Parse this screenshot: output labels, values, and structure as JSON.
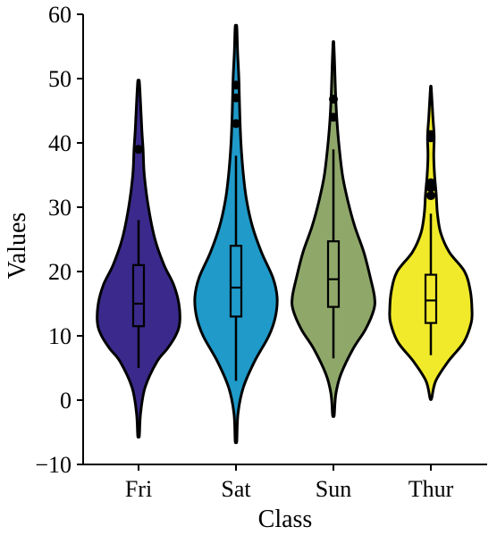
{
  "chart_data": {
    "type": "violin",
    "xlabel": "Class",
    "ylabel": "Values",
    "ylim": [
      -10,
      60
    ],
    "yticks": [
      -10,
      0,
      10,
      20,
      30,
      40,
      50,
      60
    ],
    "ytick_labels": [
      "−10",
      "0",
      "10",
      "20",
      "30",
      "40",
      "50",
      "60"
    ],
    "categories": [
      "Fri",
      "Sat",
      "Sun",
      "Thur"
    ],
    "grid": false,
    "series": [
      {
        "category": "Fri",
        "color": "#3b2a8c",
        "extent": [
          -5.5,
          49.5
        ],
        "box": {
          "whisker_low": 5,
          "q1": 11.5,
          "median": 15,
          "q3": 21,
          "whisker_high": 28
        },
        "outliers": [
          39
        ],
        "density_profile": [
          [
            -5.5,
            0.02
          ],
          [
            -2,
            0.05
          ],
          [
            2,
            0.16
          ],
          [
            6,
            0.45
          ],
          [
            8,
            0.7
          ],
          [
            10,
            0.9
          ],
          [
            12,
            1.0
          ],
          [
            15,
            0.98
          ],
          [
            18,
            0.85
          ],
          [
            21,
            0.62
          ],
          [
            25,
            0.4
          ],
          [
            30,
            0.24
          ],
          [
            35,
            0.14
          ],
          [
            39,
            0.11
          ],
          [
            42,
            0.08
          ],
          [
            46,
            0.05
          ],
          [
            49.5,
            0.02
          ]
        ]
      },
      {
        "category": "Sat",
        "color": "#1f9ac9",
        "extent": [
          -6.3,
          58
        ],
        "box": {
          "whisker_low": 3,
          "q1": 13,
          "median": 17.5,
          "q3": 24,
          "whisker_high": 38
        },
        "outliers": [
          43,
          47,
          49
        ],
        "density_profile": [
          [
            -6.3,
            0.02
          ],
          [
            -2,
            0.05
          ],
          [
            2,
            0.18
          ],
          [
            6,
            0.45
          ],
          [
            10,
            0.8
          ],
          [
            13,
            0.96
          ],
          [
            16,
            1.0
          ],
          [
            19,
            0.9
          ],
          [
            23,
            0.62
          ],
          [
            27,
            0.4
          ],
          [
            31,
            0.26
          ],
          [
            35,
            0.18
          ],
          [
            40,
            0.12
          ],
          [
            45,
            0.09
          ],
          [
            50,
            0.07
          ],
          [
            54,
            0.04
          ],
          [
            58,
            0.02
          ]
        ]
      },
      {
        "category": "Sun",
        "color": "#8fa86a",
        "extent": [
          -2.3,
          55.5
        ],
        "box": {
          "whisker_low": 6.5,
          "q1": 14.5,
          "median": 18.8,
          "q3": 24.7,
          "whisker_high": 39
        },
        "outliers": [
          44,
          46.8
        ],
        "density_profile": [
          [
            -2.3,
            0.02
          ],
          [
            1,
            0.06
          ],
          [
            4,
            0.18
          ],
          [
            8,
            0.48
          ],
          [
            11,
            0.78
          ],
          [
            14,
            0.98
          ],
          [
            16,
            1.0
          ],
          [
            19,
            0.9
          ],
          [
            23,
            0.74
          ],
          [
            27,
            0.52
          ],
          [
            31,
            0.35
          ],
          [
            35,
            0.22
          ],
          [
            40,
            0.13
          ],
          [
            44,
            0.08
          ],
          [
            48,
            0.05
          ],
          [
            52,
            0.03
          ],
          [
            55.5,
            0.01
          ]
        ]
      },
      {
        "category": "Thur",
        "color": "#f0ea2a",
        "extent": [
          0.3,
          48.5
        ],
        "box": {
          "whisker_low": 7,
          "q1": 12,
          "median": 15.5,
          "q3": 19.5,
          "whisker_high": 29
        },
        "outliers": [
          31.8,
          33,
          33.8,
          40.8,
          41.3
        ],
        "density_profile": [
          [
            0.3,
            0.02
          ],
          [
            3,
            0.12
          ],
          [
            6,
            0.42
          ],
          [
            9,
            0.8
          ],
          [
            12,
            0.98
          ],
          [
            14,
            1.0
          ],
          [
            17,
            0.96
          ],
          [
            20,
            0.82
          ],
          [
            23,
            0.45
          ],
          [
            26,
            0.24
          ],
          [
            29,
            0.16
          ],
          [
            32,
            0.13
          ],
          [
            35,
            0.09
          ],
          [
            38,
            0.07
          ],
          [
            41,
            0.08
          ],
          [
            44,
            0.05
          ],
          [
            48.5,
            0.01
          ]
        ]
      }
    ]
  }
}
